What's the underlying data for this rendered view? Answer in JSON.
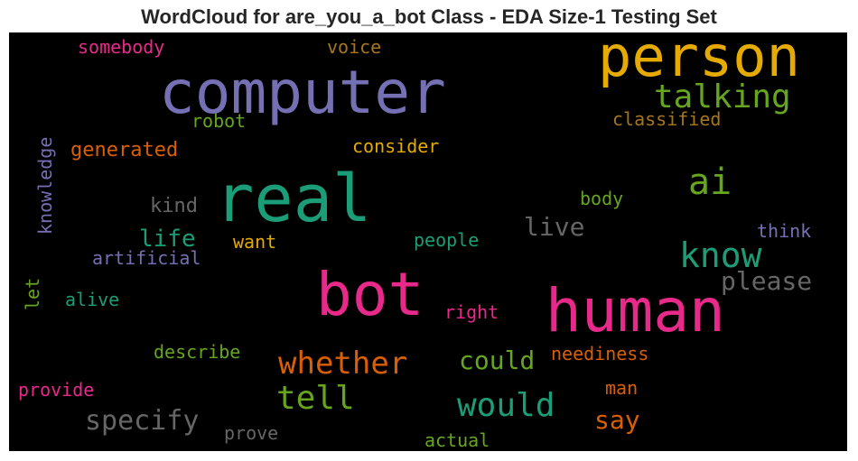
{
  "title": "WordCloud for are_you_a_bot Class - EDA Size-1 Testing Set",
  "colors": {
    "background": "#000000",
    "pink": "#e7298a",
    "purple": "#7570b3",
    "teal": "#1b9e77",
    "orange": "#d95f02",
    "green": "#66a61e",
    "gold": "#e6ab02",
    "brown": "#a6761d",
    "gray": "#666666"
  },
  "words": {
    "person": "person",
    "computer": "computer",
    "talking": "talking",
    "somebody": "somebody",
    "voice": "voice",
    "classified": "classified",
    "robot": "robot",
    "knowledge": "knowledge",
    "generated": "generated",
    "consider": "consider",
    "ai": "ai",
    "real": "real",
    "kind": "kind",
    "body": "body",
    "live": "live",
    "know": "know",
    "think": "think",
    "life": "life",
    "want": "want",
    "people": "people",
    "artificial": "artificial",
    "please": "please",
    "bot": "bot",
    "human": "human",
    "let": "let",
    "alive": "alive",
    "right": "right",
    "describe": "describe",
    "neediness": "neediness",
    "whether": "whether",
    "could": "could",
    "provide": "provide",
    "tell": "tell",
    "would": "would",
    "man": "man",
    "specify": "specify",
    "say": "say",
    "prove": "prove",
    "actual": "actual"
  }
}
